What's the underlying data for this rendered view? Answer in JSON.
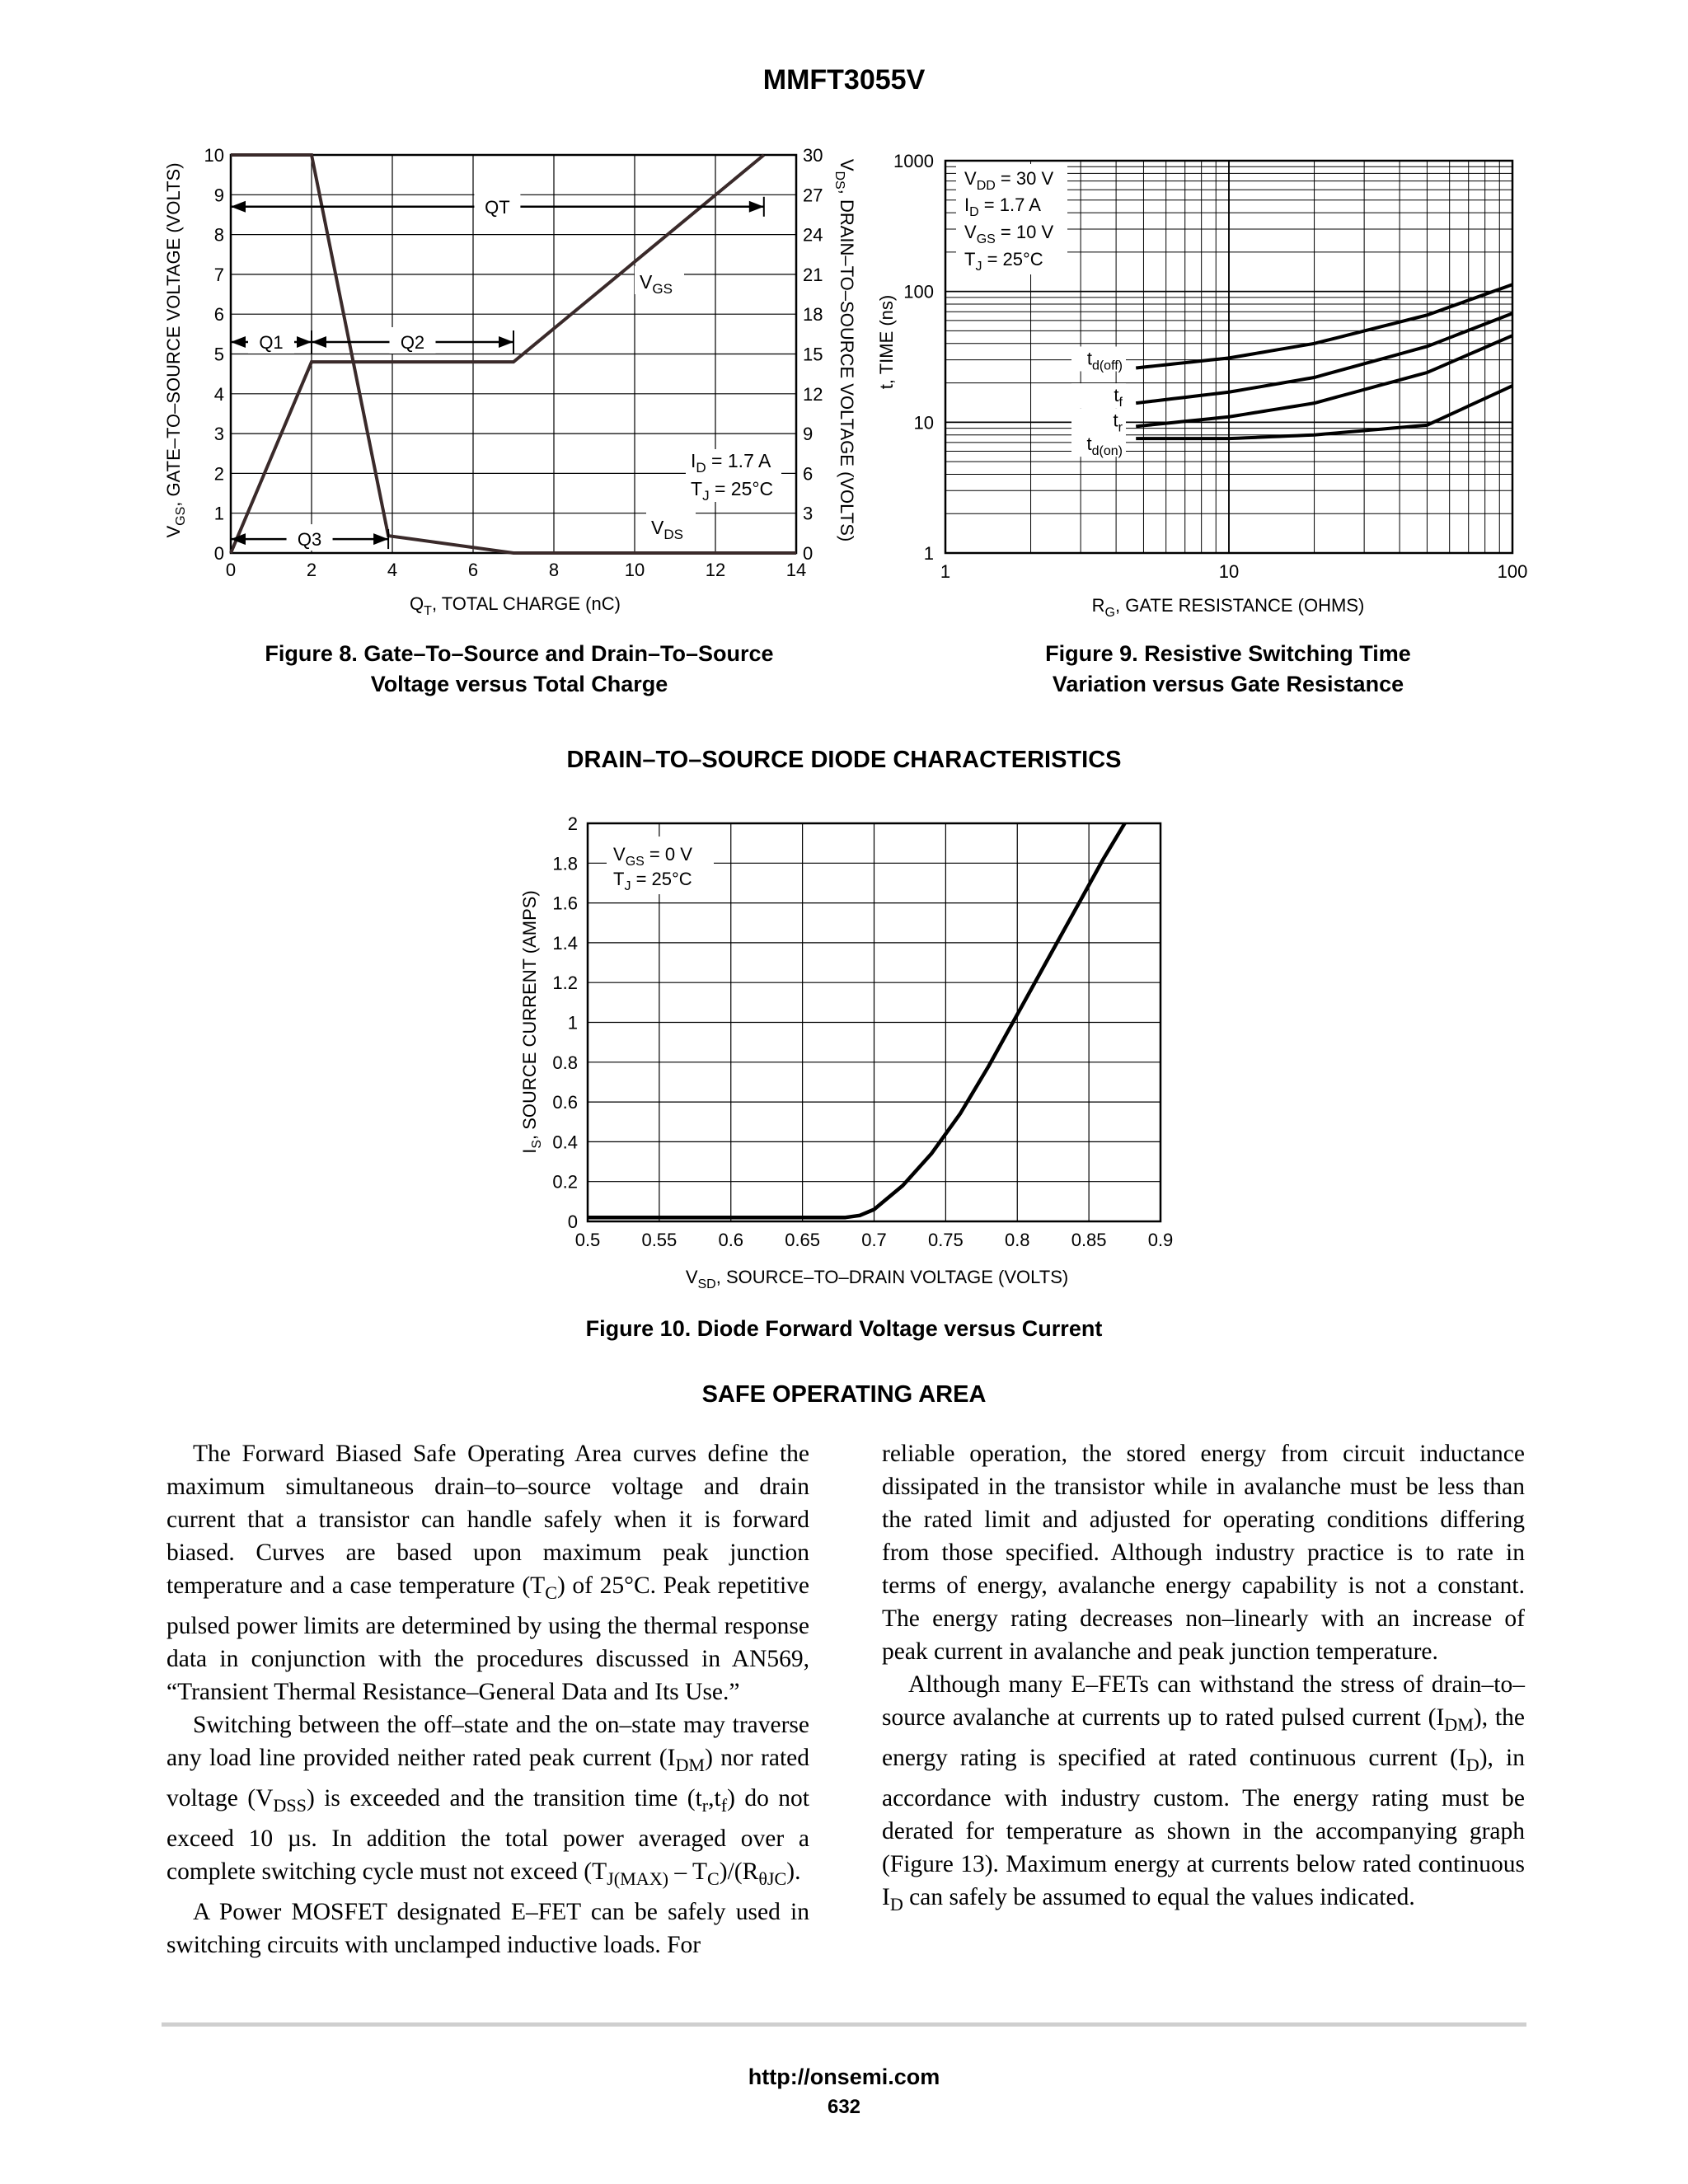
{
  "header": {
    "title": "MMFT3055V"
  },
  "figure8": {
    "caption_line1": "Figure 8. Gate–To–Source and Drain–To–Source",
    "caption_line2": "Voltage versus Total Charge",
    "xlabel": "Q",
    "xlabel_sub": "T",
    "xlabel_rest": ", TOTAL CHARGE (nC)",
    "ylabel_left": "V",
    "ylabel_left_sub": "GS",
    "ylabel_left_rest": ", GATE–TO–SOURCE VOLTAGE (VOLTS)",
    "ylabel_right": "V",
    "ylabel_right_sub": "DS",
    "ylabel_right_rest": ", DRAIN–TO–SOURCE VOLTAGE (VOLTS)",
    "labels": {
      "qt": "QT",
      "q1": "Q1",
      "q2": "Q2",
      "q3": "Q3",
      "vgs": "V",
      "vgs_sub": "GS",
      "vds": "V",
      "vds_sub": "DS"
    },
    "cond1": "I",
    "cond1_sub": "D",
    "cond1_rest": " = 1.7 A",
    "cond2": "T",
    "cond2_sub": "J",
    "cond2_rest": " = 25°C"
  },
  "figure9": {
    "caption_line1": "Figure 9. Resistive Switching Time",
    "caption_line2": "Variation versus Gate Resistance",
    "xlabel": "R",
    "xlabel_sub": "G",
    "xlabel_rest": ", GATE RESISTANCE (OHMS)",
    "ylabel": "t, TIME (ns)",
    "conds": [
      {
        "a": "V",
        "s": "DD",
        "b": " = 30 V"
      },
      {
        "a": "I",
        "s": "D",
        "b": " = 1.7 A"
      },
      {
        "a": "V",
        "s": "GS",
        "b": " = 10 V"
      },
      {
        "a": "T",
        "s": "J",
        "b": " = 25°C"
      }
    ]
  },
  "section1": {
    "title": "DRAIN–TO–SOURCE DIODE CHARACTERISTICS"
  },
  "figure10": {
    "caption": "Figure 10. Diode Forward Voltage versus Current",
    "xlabel": "V",
    "xlabel_sub": "SD",
    "xlabel_rest": ", SOURCE–TO–DRAIN VOLTAGE (VOLTS)",
    "ylabel": "I",
    "ylabel_sub": "S",
    "ylabel_rest": ", SOURCE CURRENT (AMPS)",
    "cond1": "V",
    "cond1_sub": "GS",
    "cond1_rest": " = 0 V",
    "cond2": "T",
    "cond2_sub": "J",
    "cond2_rest": " = 25°C"
  },
  "chart_data": [
    {
      "type": "line",
      "x_range": [
        0,
        14
      ],
      "x_ticks": [
        "0",
        "2",
        "4",
        "6",
        "8",
        "10",
        "12",
        "14"
      ],
      "y_left_range": [
        0,
        10
      ],
      "y_left_ticks": [
        "0",
        "1",
        "2",
        "3",
        "4",
        "5",
        "6",
        "7",
        "8",
        "9",
        "10"
      ],
      "y_right_range": [
        0,
        30
      ],
      "y_right_ticks": [
        "0",
        "3",
        "6",
        "9",
        "12",
        "15",
        "18",
        "21",
        "24",
        "27",
        "30"
      ],
      "grid": true,
      "series": [
        {
          "name": "VGS",
          "axis": "left",
          "x": [
            0,
            2,
            7,
            13.2
          ],
          "y": [
            0,
            4.8,
            4.8,
            10
          ]
        },
        {
          "name": "VDS",
          "axis": "right",
          "x": [
            0,
            2,
            3.9,
            7,
            14
          ],
          "y": [
            30,
            30,
            1.3,
            0,
            0
          ]
        }
      ],
      "annotations": [
        {
          "label": "QT",
          "from": 0,
          "to": 13.2,
          "y": 8.7
        },
        {
          "label": "Q1",
          "from": 0,
          "to": 2,
          "y": 5.3
        },
        {
          "label": "Q2",
          "from": 2,
          "to": 7,
          "y": 5.3
        },
        {
          "label": "Q3",
          "from": 0,
          "to": 3.9,
          "y": 0.35
        }
      ]
    },
    {
      "type": "line",
      "x_scale": "log",
      "y_scale": "log",
      "x_range": [
        1,
        100
      ],
      "x_ticks": [
        "1",
        "10",
        "100"
      ],
      "y_range": [
        1,
        1000
      ],
      "y_ticks": [
        "1",
        "10",
        "100",
        "1000"
      ],
      "grid": true,
      "series": [
        {
          "name": "td(off)",
          "x": [
            4.7,
            10,
            20,
            50,
            100
          ],
          "y": [
            26,
            31,
            40,
            66,
            113
          ]
        },
        {
          "name": "tf",
          "x": [
            4.7,
            10,
            20,
            50,
            100
          ],
          "y": [
            14,
            17,
            22,
            38,
            68
          ]
        },
        {
          "name": "tr",
          "x": [
            4.7,
            10,
            20,
            50,
            100
          ],
          "y": [
            9.3,
            11,
            14,
            24,
            46
          ]
        },
        {
          "name": "td(on)",
          "x": [
            4.7,
            10,
            20,
            50,
            100
          ],
          "y": [
            7.5,
            7.5,
            8,
            9.5,
            19
          ]
        }
      ]
    },
    {
      "type": "line",
      "x_range": [
        0.5,
        0.9
      ],
      "x_ticks": [
        "0.5",
        "0.55",
        "0.6",
        "0.65",
        "0.7",
        "0.75",
        "0.8",
        "0.85",
        "0.9"
      ],
      "y_range": [
        0,
        2
      ],
      "y_ticks": [
        "0",
        "0.2",
        "0.4",
        "0.6",
        "0.8",
        "1",
        "1.2",
        "1.4",
        "1.6",
        "1.8",
        "2"
      ],
      "grid": true,
      "series": [
        {
          "name": "IS",
          "x": [
            0.5,
            0.68,
            0.69,
            0.7,
            0.72,
            0.74,
            0.76,
            0.78,
            0.8,
            0.82,
            0.84,
            0.86,
            0.875
          ],
          "y": [
            0.02,
            0.02,
            0.03,
            0.06,
            0.18,
            0.34,
            0.54,
            0.78,
            1.04,
            1.3,
            1.56,
            1.82,
            2.0
          ]
        }
      ]
    }
  ],
  "section2": {
    "title": "SAFE OPERATING AREA"
  },
  "body": {
    "p1": "The Forward Biased Safe Operating Area curves define the maximum simultaneous drain–to–source voltage and drain current that a transistor can handle safely when it is forward biased. Curves are based upon maximum peak junction temperature and a case temperature (T",
    "p1_sub": "C",
    "p1_b": ") of 25°C. Peak repetitive pulsed power limits are determined by using the thermal response data in conjunction with the procedures discussed in AN569, “Transient Thermal Resistance–General Data and Its Use.”",
    "p2_a": "Switching between the off–state and the on–state may traverse any load line provided neither rated peak current (I",
    "p2_s1": "DM",
    "p2_b": ") nor rated voltage (V",
    "p2_s2": "DSS",
    "p2_c": ") is exceeded and the transition time (t",
    "p2_s3": "r",
    "p2_d": ",t",
    "p2_s4": "f",
    "p2_e": ") do not exceed 10 µs. In addition the total power averaged over a complete switching cycle must not exceed (T",
    "p2_s5": "J(MAX)",
    "p2_f": " – T",
    "p2_s6": "C",
    "p2_g": ")/(R",
    "p2_s7": "θJC",
    "p2_h": ").",
    "p3": "A Power MOSFET designated E–FET can be safely used in switching circuits with unclamped inductive loads. For reliable operation, the stored energy from circuit inductance dissipated in the transistor while in avalanche must be less than the rated limit and adjusted for operating conditions differing from those specified. Although industry practice is to rate in terms of energy, avalanche energy capability is not a constant. The energy rating decreases non–linearly with an increase of peak current in avalanche and peak junction temperature.",
    "p4_a": "Although many E–FETs can withstand the stress of drain–to–source avalanche at currents up to rated pulsed current (I",
    "p4_s1": "DM",
    "p4_b": "), the energy rating is specified at rated continuous current (I",
    "p4_s2": "D",
    "p4_c": "), in accordance with industry custom. The energy rating must be derated for temperature as shown in the accompanying graph (Figure 13). Maximum energy at currents below rated continuous I",
    "p4_s3": "D",
    "p4_d": " can safely be assumed to equal the values indicated."
  },
  "footer": {
    "url": "http://onsemi.com",
    "page": "632"
  }
}
